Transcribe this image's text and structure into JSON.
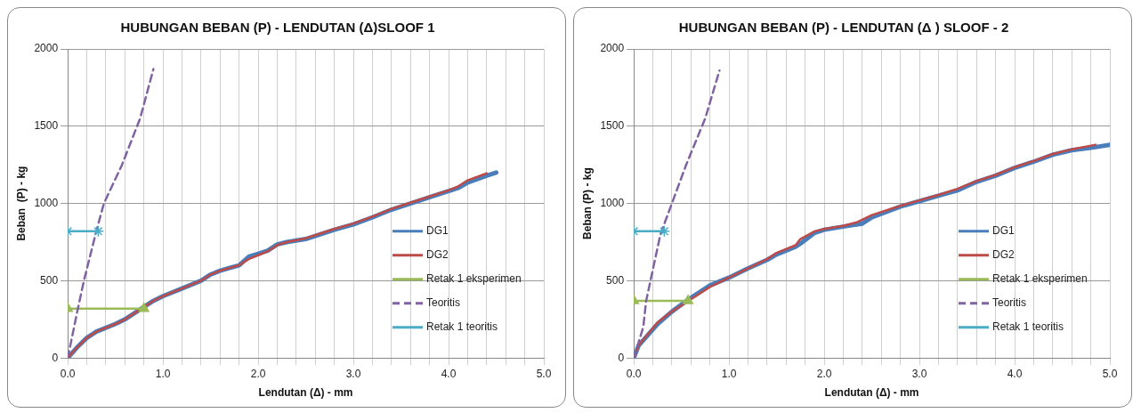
{
  "chart_data": [
    {
      "type": "line",
      "title": "HUBUNGAN BEBAN (P) - LENDUTAN (Δ)SLOOF 1",
      "xlabel": "Lendutan (Δ) - mm",
      "ylabel": "Beban  (P) - kg",
      "xlim": [
        0,
        5
      ],
      "ylim": [
        0,
        2000
      ],
      "xticks": [
        {
          "value": 0,
          "label": "0.0"
        },
        {
          "value": 0.2,
          "label": null
        },
        {
          "value": 0.4,
          "label": null
        },
        {
          "value": 0.6,
          "label": null
        },
        {
          "value": 0.8,
          "label": null
        },
        {
          "value": 1,
          "label": "1.0"
        },
        {
          "value": 1.2,
          "label": null
        },
        {
          "value": 1.4,
          "label": null
        },
        {
          "value": 1.6,
          "label": null
        },
        {
          "value": 1.8,
          "label": null
        },
        {
          "value": 2,
          "label": "2.0"
        },
        {
          "value": 2.2,
          "label": null
        },
        {
          "value": 2.4,
          "label": null
        },
        {
          "value": 2.6,
          "label": null
        },
        {
          "value": 2.8,
          "label": null
        },
        {
          "value": 3,
          "label": "3.0"
        },
        {
          "value": 3.2,
          "label": null
        },
        {
          "value": 3.4,
          "label": null
        },
        {
          "value": 3.6,
          "label": null
        },
        {
          "value": 3.8,
          "label": null
        },
        {
          "value": 4,
          "label": "4.0"
        },
        {
          "value": 4.2,
          "label": null
        },
        {
          "value": 4.4,
          "label": null
        },
        {
          "value": 4.6,
          "label": null
        },
        {
          "value": 4.8,
          "label": null
        },
        {
          "value": 5,
          "label": "5.0"
        }
      ],
      "yticks": [
        0,
        500,
        1000,
        1500,
        2000
      ],
      "grid": true,
      "legend": "right",
      "series": [
        {
          "name": "DG1",
          "color": "#4a7ebb",
          "marker": "none",
          "line_style": "solid",
          "x": [
            0,
            0.1,
            0.2,
            0.3,
            0.5,
            0.6,
            0.7,
            0.8,
            0.9,
            1.0,
            1.2,
            1.4,
            1.5,
            1.6,
            1.8,
            1.9,
            2.0,
            2.1,
            2.2,
            2.3,
            2.5,
            2.6,
            2.8,
            3.0,
            3.2,
            3.4,
            3.6,
            3.8,
            4.0,
            4.1,
            4.2,
            4.4,
            4.5
          ],
          "values": [
            0,
            70,
            130,
            170,
            220,
            250,
            290,
            330,
            370,
            400,
            450,
            500,
            540,
            565,
            600,
            655,
            675,
            695,
            735,
            750,
            770,
            790,
            830,
            865,
            910,
            960,
            1000,
            1040,
            1080,
            1100,
            1135,
            1180,
            1200
          ]
        },
        {
          "name": "DG2",
          "color": "#be4b48",
          "marker": "none",
          "line_style": "solid",
          "x": [
            0,
            0.1,
            0.2,
            0.3,
            0.5,
            0.6,
            0.7,
            0.8,
            0.9,
            1.0,
            1.2,
            1.4,
            1.5,
            1.6,
            1.8,
            1.9,
            2.0,
            2.1,
            2.2,
            2.3,
            2.5,
            2.6,
            2.8,
            3.0,
            3.2,
            3.4,
            3.6,
            3.8,
            4.0,
            4.1,
            4.2,
            4.4
          ],
          "values": [
            0,
            70,
            130,
            170,
            220,
            250,
            290,
            330,
            370,
            400,
            450,
            500,
            540,
            565,
            600,
            640,
            665,
            690,
            730,
            750,
            775,
            795,
            835,
            870,
            915,
            965,
            1005,
            1045,
            1085,
            1110,
            1150,
            1195
          ]
        },
        {
          "name": "Retak 1 eksperimen",
          "color": "#9bbb59",
          "marker": "triangle",
          "line_style": "solid",
          "x": [
            0,
            0.8
          ],
          "values": [
            320,
            320
          ]
        },
        {
          "name": "Teoritis",
          "color": "#8064a2",
          "marker": "none",
          "line_style": "dashed",
          "x": [
            0,
            0.1,
            0.17,
            0.3,
            0.38,
            0.57,
            0.76,
            0.9
          ],
          "values": [
            0,
            300,
            500,
            820,
            1000,
            1250,
            1550,
            1870
          ]
        },
        {
          "name": "Retak 1 teoritis",
          "color": "#4bacc6",
          "marker": "cross",
          "line_style": "solid",
          "x": [
            0,
            0.32
          ],
          "values": [
            820,
            820
          ]
        }
      ]
    },
    {
      "type": "line",
      "title": "HUBUNGAN BEBAN (P) - LENDUTAN (Δ ) SLOOF - 2",
      "xlabel": "Lendutan (Δ) - mm",
      "ylabel": "Beban (P) - kg",
      "xlim": [
        0,
        5
      ],
      "ylim": [
        0,
        2000
      ],
      "xticks": [
        {
          "value": 0,
          "label": "0.0"
        },
        {
          "value": 0.2,
          "label": null
        },
        {
          "value": 0.4,
          "label": null
        },
        {
          "value": 0.6,
          "label": null
        },
        {
          "value": 0.8,
          "label": null
        },
        {
          "value": 1,
          "label": "1.0"
        },
        {
          "value": 1.2,
          "label": null
        },
        {
          "value": 1.4,
          "label": null
        },
        {
          "value": 1.6,
          "label": null
        },
        {
          "value": 1.8,
          "label": null
        },
        {
          "value": 2,
          "label": "2.0"
        },
        {
          "value": 2.2,
          "label": null
        },
        {
          "value": 2.4,
          "label": null
        },
        {
          "value": 2.6,
          "label": null
        },
        {
          "value": 2.8,
          "label": null
        },
        {
          "value": 3,
          "label": "3.0"
        },
        {
          "value": 3.2,
          "label": null
        },
        {
          "value": 3.4,
          "label": null
        },
        {
          "value": 3.6,
          "label": null
        },
        {
          "value": 3.8,
          "label": null
        },
        {
          "value": 4,
          "label": "4.0"
        },
        {
          "value": 4.2,
          "label": null
        },
        {
          "value": 4.4,
          "label": null
        },
        {
          "value": 4.6,
          "label": null
        },
        {
          "value": 4.8,
          "label": null
        },
        {
          "value": 5,
          "label": "5.0"
        }
      ],
      "yticks": [
        0,
        500,
        1000,
        1500,
        2000
      ],
      "grid": true,
      "legend": "right",
      "series": [
        {
          "name": "DG1",
          "color": "#4a7ebb",
          "marker": "none",
          "line_style": "solid",
          "x": [
            0,
            0.05,
            0.25,
            0.4,
            0.6,
            0.8,
            1.0,
            1.2,
            1.4,
            1.5,
            1.7,
            1.75,
            1.9,
            2.0,
            2.2,
            2.4,
            2.5,
            2.8,
            3.0,
            3.2,
            3.4,
            3.6,
            3.8,
            4.0,
            4.2,
            4.4,
            4.6,
            4.8,
            5.0
          ],
          "values": [
            0,
            80,
            220,
            300,
            390,
            470,
            520,
            580,
            635,
            670,
            720,
            740,
            810,
            830,
            850,
            870,
            910,
            980,
            1015,
            1050,
            1085,
            1140,
            1180,
            1230,
            1270,
            1315,
            1345,
            1360,
            1380
          ]
        },
        {
          "name": "DG2",
          "color": "#be4b48",
          "marker": "none",
          "line_style": "solid",
          "x": [
            0,
            0.05,
            0.25,
            0.4,
            0.6,
            0.8,
            1.0,
            1.2,
            1.4,
            1.5,
            1.7,
            1.75,
            1.9,
            2.0,
            2.2,
            2.35,
            2.5,
            2.8,
            3.0,
            3.2,
            3.4,
            3.6,
            3.8,
            4.0,
            4.2,
            4.4,
            4.6,
            4.85
          ],
          "values": [
            0,
            80,
            230,
            300,
            380,
            460,
            520,
            580,
            640,
            680,
            730,
            770,
            820,
            835,
            855,
            880,
            925,
            985,
            1020,
            1055,
            1095,
            1145,
            1185,
            1235,
            1275,
            1320,
            1350,
            1380
          ]
        },
        {
          "name": "Retak 1 eksperimen",
          "color": "#9bbb59",
          "marker": "triangle",
          "line_style": "solid",
          "x": [
            0,
            0.57
          ],
          "values": [
            370,
            370
          ]
        },
        {
          "name": "Teoritis",
          "color": "#8064a2",
          "marker": "none",
          "line_style": "dashed",
          "x": [
            0,
            0.1,
            0.13,
            0.28,
            0.4,
            0.55,
            0.75,
            0.9
          ],
          "values": [
            0,
            200,
            370,
            800,
            1000,
            1250,
            1550,
            1860
          ]
        },
        {
          "name": "Retak 1 teoritis",
          "color": "#4bacc6",
          "marker": "cross",
          "line_style": "solid",
          "x": [
            0,
            0.32
          ],
          "values": [
            820,
            820
          ]
        }
      ]
    }
  ]
}
